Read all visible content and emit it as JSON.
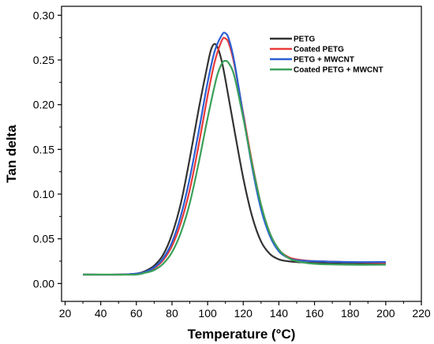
{
  "chart_data": {
    "type": "line",
    "title": "",
    "xlabel": "Temperature (°C)",
    "ylabel": "Tan delta",
    "xlim": [
      18,
      220
    ],
    "ylim": [
      -0.02,
      0.31
    ],
    "xticks": [
      20,
      40,
      60,
      80,
      100,
      120,
      140,
      160,
      180,
      200,
      220
    ],
    "yticks": [
      0.0,
      0.05,
      0.1,
      0.15,
      0.2,
      0.25,
      0.3
    ],
    "xtick_labels": [
      "20",
      "40",
      "60",
      "80",
      "100",
      "120",
      "140",
      "160",
      "180",
      "200",
      "220"
    ],
    "ytick_labels": [
      "0.00",
      "0.05",
      "0.10",
      "0.15",
      "0.20",
      "0.25",
      "0.30"
    ],
    "grid": false,
    "legend_position": "top-right",
    "series": [
      {
        "name": "PETG",
        "color": "#333333",
        "x": [
          30,
          50,
          60,
          65,
          70,
          75,
          80,
          85,
          90,
          95,
          100,
          102,
          104,
          106,
          108,
          110,
          115,
          120,
          125,
          130,
          135,
          140,
          145,
          150,
          160,
          180,
          200
        ],
        "y": [
          0.01,
          0.01,
          0.011,
          0.014,
          0.02,
          0.032,
          0.055,
          0.09,
          0.14,
          0.195,
          0.245,
          0.262,
          0.268,
          0.262,
          0.248,
          0.228,
          0.172,
          0.118,
          0.075,
          0.047,
          0.033,
          0.027,
          0.025,
          0.024,
          0.023,
          0.022,
          0.022
        ]
      },
      {
        "name": "Coated PETG",
        "color": "#e83a3a",
        "x": [
          30,
          50,
          60,
          65,
          70,
          75,
          80,
          85,
          90,
          95,
          100,
          104,
          108,
          110,
          112,
          115,
          120,
          125,
          130,
          135,
          140,
          145,
          150,
          160,
          180,
          200
        ],
        "y": [
          0.01,
          0.01,
          0.011,
          0.013,
          0.017,
          0.026,
          0.042,
          0.068,
          0.105,
          0.155,
          0.21,
          0.248,
          0.272,
          0.274,
          0.268,
          0.245,
          0.19,
          0.135,
          0.088,
          0.056,
          0.038,
          0.03,
          0.027,
          0.025,
          0.024,
          0.023
        ]
      },
      {
        "name": "PETG + MWCNT",
        "color": "#2a5fd4",
        "x": [
          30,
          50,
          60,
          65,
          70,
          75,
          80,
          85,
          90,
          95,
          100,
          104,
          108,
          110,
          112,
          115,
          120,
          125,
          130,
          135,
          140,
          145,
          150,
          160,
          180,
          200
        ],
        "y": [
          0.01,
          0.01,
          0.011,
          0.013,
          0.018,
          0.028,
          0.046,
          0.076,
          0.118,
          0.17,
          0.225,
          0.26,
          0.278,
          0.28,
          0.273,
          0.248,
          0.188,
          0.13,
          0.083,
          0.053,
          0.036,
          0.029,
          0.026,
          0.025,
          0.024,
          0.024
        ]
      },
      {
        "name": "Coated PETG + MWCNT",
        "color": "#3aa05a",
        "x": [
          30,
          50,
          60,
          65,
          70,
          75,
          80,
          85,
          90,
          95,
          100,
          105,
          108,
          110,
          112,
          115,
          120,
          125,
          130,
          135,
          140,
          145,
          150,
          160,
          180,
          200
        ],
        "y": [
          0.01,
          0.01,
          0.01,
          0.012,
          0.015,
          0.022,
          0.035,
          0.057,
          0.09,
          0.135,
          0.185,
          0.23,
          0.246,
          0.249,
          0.246,
          0.232,
          0.185,
          0.133,
          0.088,
          0.056,
          0.038,
          0.029,
          0.025,
          0.022,
          0.021,
          0.021
        ]
      }
    ]
  }
}
